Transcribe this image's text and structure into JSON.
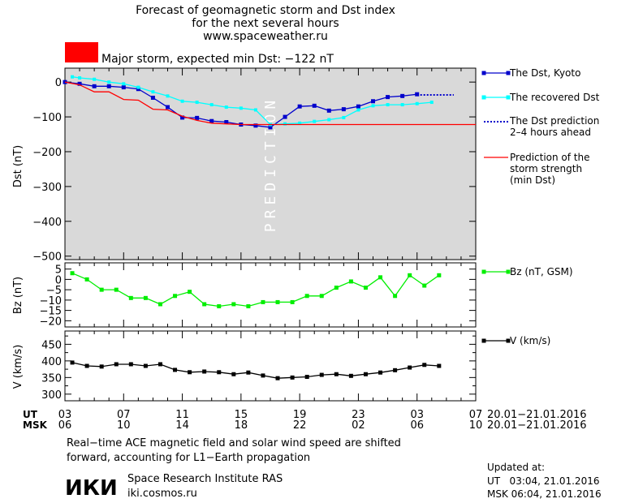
{
  "header": {
    "title_line1": "Forecast of geomagnetic storm and Dst index",
    "title_line2": "for the next several hours",
    "url": "www.spaceweather.ru",
    "storm_label": "Major storm, expected min Dst: −122 nT",
    "storm_color": "#ff0000"
  },
  "chart_data": [
    {
      "type": "line",
      "ylabel": "Dst (nT)",
      "ylim": [
        -510,
        40
      ],
      "yticks": [
        0,
        -100,
        -200,
        -300,
        -400,
        -500
      ],
      "ytick_labels": [
        "0",
        "−100",
        "−200",
        "−300",
        "−400",
        "−500"
      ],
      "prediction_label": "PREDICTION",
      "prediction_region": [
        3,
        7
      ],
      "min_dst": -122,
      "series": [
        {
          "name": "The Dst, Kyoto",
          "color": "#0000cc",
          "x": [
            3,
            4,
            5,
            6,
            7,
            8,
            9,
            10,
            11,
            12,
            13,
            14,
            15,
            16,
            17,
            18,
            19,
            20,
            21,
            22,
            23,
            24,
            25,
            26,
            27
          ],
          "y": [
            0,
            -5,
            -12,
            -12,
            -15,
            -20,
            -45,
            -72,
            -102,
            -103,
            -112,
            -115,
            -122,
            -125,
            -130,
            -100,
            -70,
            -68,
            -82,
            -78,
            -70,
            -55,
            -43,
            -40,
            -35
          ]
        },
        {
          "name": "The recovered Dst",
          "color": "#00ffff",
          "x": [
            3.5,
            4,
            5,
            6,
            7,
            8,
            9,
            10,
            11,
            12,
            13,
            14,
            15,
            16,
            17,
            18,
            19,
            20,
            21,
            22,
            23,
            24,
            25,
            26,
            27,
            28
          ],
          "y": [
            15,
            12,
            8,
            0,
            -5,
            -15,
            -28,
            -40,
            -55,
            -58,
            -65,
            -72,
            -75,
            -80,
            -122,
            -120,
            -118,
            -113,
            -108,
            -102,
            -80,
            -68,
            -65,
            -65,
            -62,
            -58
          ]
        },
        {
          "name": "The Dst prediction 2–4 hours ahead",
          "color": "#0000cc",
          "x": [
            27,
            29.5
          ],
          "y": [
            -37,
            -37
          ]
        },
        {
          "name": "Prediction of the storm strength (min Dst)",
          "color": "#ff0000",
          "x": [
            3,
            4,
            5,
            6,
            7,
            8,
            9,
            10,
            11,
            12,
            13,
            14,
            15,
            16,
            17,
            31
          ],
          "y": [
            0,
            -8,
            -28,
            -28,
            -50,
            -52,
            -78,
            -80,
            -98,
            -110,
            -118,
            -120,
            -122,
            -122,
            -122,
            -122
          ]
        }
      ]
    },
    {
      "type": "line",
      "ylabel": "Bz (nT)",
      "ylim": [
        -23,
        8
      ],
      "yticks": [
        5,
        0,
        -5,
        -10,
        -15,
        -20
      ],
      "ytick_labels": [
        "5",
        "0",
        "−5",
        "−10",
        "−15",
        "−20"
      ],
      "series": [
        {
          "name": "Bz (nT, GSM)",
          "color": "#00ee00",
          "x": [
            3.5,
            4.5,
            5.5,
            6.5,
            7.5,
            8.5,
            9.5,
            10.5,
            11.5,
            12.5,
            13.5,
            14.5,
            15.5,
            16.5,
            17.5,
            18.5,
            19.5,
            20.5,
            21.5,
            22.5,
            23.5,
            24.5,
            25.5,
            26.5,
            27.5,
            28.5
          ],
          "y": [
            3,
            0,
            -5,
            -5,
            -9,
            -9,
            -12,
            -8,
            -6,
            -12,
            -13,
            -12,
            -13,
            -11,
            -11,
            -11,
            -8,
            -8,
            -4,
            -1,
            -4,
            1,
            -8,
            2,
            -3,
            2
          ]
        }
      ]
    },
    {
      "type": "line",
      "ylabel": "V (km/s)",
      "ylim": [
        280,
        490
      ],
      "yticks": [
        450,
        400,
        350,
        300
      ],
      "minor_yticks": [
        475,
        425,
        375,
        325
      ],
      "ytick_labels": [
        "450",
        "400",
        "350",
        "300"
      ],
      "series": [
        {
          "name": "V (km/s)",
          "color": "#000000",
          "x": [
            3.5,
            4.5,
            5.5,
            6.5,
            7.5,
            8.5,
            9.5,
            10.5,
            11.5,
            12.5,
            13.5,
            14.5,
            15.5,
            16.5,
            17.5,
            18.5,
            19.5,
            20.5,
            21.5,
            22.5,
            23.5,
            24.5,
            25.5,
            26.5,
            27.5,
            28.5
          ],
          "y": [
            395,
            385,
            383,
            390,
            390,
            385,
            390,
            373,
            366,
            368,
            366,
            360,
            365,
            356,
            348,
            350,
            352,
            358,
            360,
            355,
            360,
            365,
            372,
            380,
            388,
            385
          ]
        }
      ]
    }
  ],
  "time_axis": {
    "ut_label": "UT",
    "msk_label": "MSK",
    "ut_ticks": [
      "03",
      "07",
      "11",
      "15",
      "19",
      "23",
      "03",
      "07"
    ],
    "msk_ticks": [
      "06",
      "10",
      "14",
      "18",
      "22",
      "02",
      "06",
      "10"
    ],
    "date_range_ut": "20.01−21.01.2016",
    "date_range_msk": "20.01−21.01.2016"
  },
  "legend": {
    "dst_kyoto": "The Dst, Kyoto",
    "recovered": "The recovered Dst",
    "prediction_line1": "The Dst prediction",
    "prediction_line2": "2–4 hours ahead",
    "strength_line1": "Prediction of the",
    "strength_line2": "storm strength",
    "strength_line3": "(min Dst)",
    "bz": "Bz (nT, GSM)",
    "v": "V (km/s)"
  },
  "footer": {
    "note_line1": "Real−time ACE magnetic field and solar wind speed are shifted",
    "note_line2": "forward, accounting for L1−Earth propagation",
    "logo_text": "ИКИ",
    "institute": "Space Research Institute RAS",
    "site": "iki.cosmos.ru",
    "updated_label": "Updated at:",
    "updated_ut": "UT   03:04, 21.01.2016",
    "updated_msk": "MSK 06:04, 21.01.2016"
  }
}
